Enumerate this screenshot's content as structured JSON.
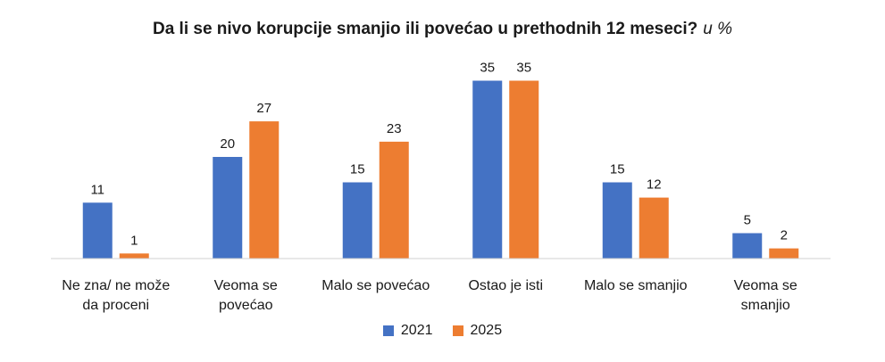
{
  "chart_data": {
    "type": "bar",
    "title": "Da li se nivo korupcije smanjio ili povećao u prethodnih 12 meseci?",
    "title_unit": "u %",
    "categories": [
      [
        "Ne zna/ ne može",
        "da proceni"
      ],
      [
        "Veoma se",
        "povećao"
      ],
      [
        "Malo se povećao"
      ],
      [
        "Ostao je isti"
      ],
      [
        "Malo se smanjio"
      ],
      [
        "Veoma se",
        "smanjio"
      ]
    ],
    "series": [
      {
        "name": "2021",
        "color": "#4472C4",
        "values": [
          11,
          20,
          15,
          35,
          15,
          5
        ]
      },
      {
        "name": "2025",
        "color": "#ED7D31",
        "values": [
          1,
          27,
          23,
          35,
          12,
          2
        ]
      }
    ],
    "ylim": [
      0,
      35
    ],
    "grid": false,
    "legend_position": "bottom"
  }
}
